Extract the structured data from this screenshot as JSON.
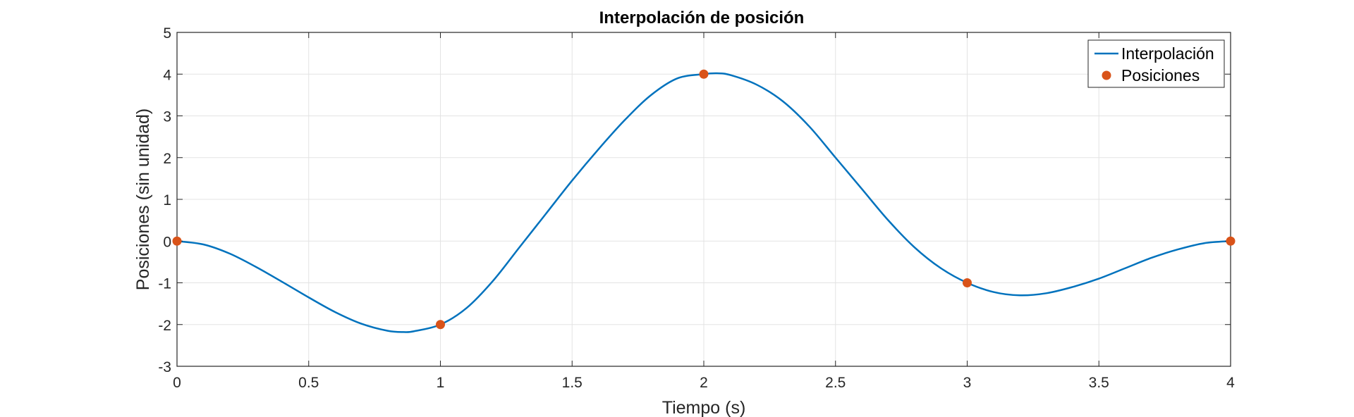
{
  "chart_data": {
    "type": "line",
    "title": "Interpolación de posición",
    "xlabel": "Tiempo (s)",
    "ylabel": "Posiciones (sin unidad)",
    "xlim": [
      0,
      4
    ],
    "ylim": [
      -3,
      5
    ],
    "xticks": [
      0,
      0.5,
      1,
      1.5,
      2,
      2.5,
      3,
      3.5,
      4
    ],
    "yticks": [
      -3,
      -2,
      -1,
      0,
      1,
      2,
      3,
      4,
      5
    ],
    "grid": true,
    "legend_position": "top-right",
    "series": [
      {
        "name": "Interpolación",
        "kind": "line",
        "color": "#0072BD",
        "x": [
          0,
          0.1,
          0.2,
          0.3,
          0.4,
          0.5,
          0.6,
          0.7,
          0.8,
          0.86,
          0.9,
          1.0,
          1.1,
          1.2,
          1.3,
          1.4,
          1.5,
          1.6,
          1.7,
          1.8,
          1.9,
          2.0,
          2.05,
          2.1,
          2.2,
          2.3,
          2.4,
          2.5,
          2.6,
          2.7,
          2.8,
          2.9,
          3.0,
          3.1,
          3.2,
          3.3,
          3.4,
          3.5,
          3.6,
          3.7,
          3.8,
          3.9,
          4.0
        ],
        "y": [
          0,
          -0.08,
          -0.3,
          -0.62,
          -0.98,
          -1.35,
          -1.7,
          -1.98,
          -2.15,
          -2.18,
          -2.16,
          -2.0,
          -1.6,
          -0.95,
          -0.15,
          0.65,
          1.45,
          2.2,
          2.9,
          3.5,
          3.9,
          4.0,
          4.02,
          3.98,
          3.75,
          3.35,
          2.75,
          2.0,
          1.25,
          0.5,
          -0.15,
          -0.65,
          -1.0,
          -1.22,
          -1.3,
          -1.25,
          -1.1,
          -0.9,
          -0.65,
          -0.4,
          -0.2,
          -0.05,
          0
        ]
      },
      {
        "name": "Posiciones",
        "kind": "markers",
        "color": "#D95319",
        "x": [
          0,
          1,
          2,
          3,
          4
        ],
        "y": [
          0,
          -2,
          4,
          -1,
          0
        ]
      }
    ]
  }
}
